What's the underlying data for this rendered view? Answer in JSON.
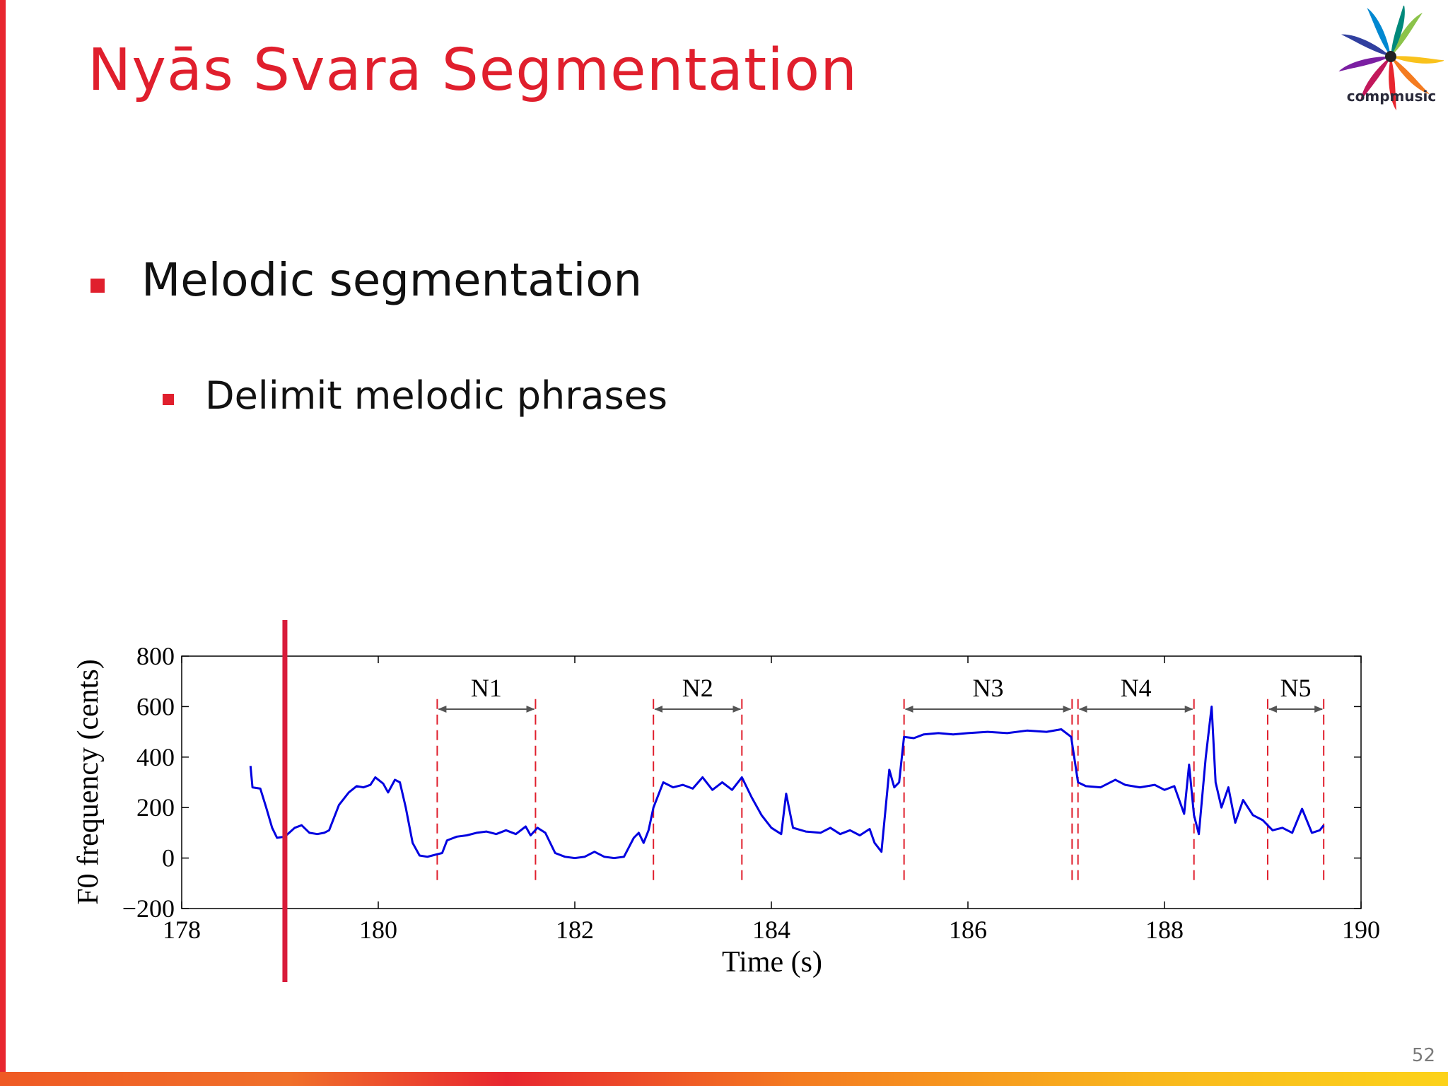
{
  "slide": {
    "title": "Nyās Svara Segmentation",
    "logo_text": "compmusic",
    "bullets": [
      {
        "text": "Melodic segmentation",
        "level": 1
      },
      {
        "text": "Delimit melodic phrases",
        "level": 2
      }
    ],
    "page_number": "52",
    "colors": {
      "accent": "#e01f2d",
      "trace": "#0000e0",
      "segment_line": "#e01f2d",
      "arrow": "#555555"
    }
  },
  "chart_data": {
    "type": "line",
    "xlabel": "Time (s)",
    "ylabel": "F0 frequency (cents)",
    "xlim": [
      178,
      190
    ],
    "ylim": [
      -200,
      800
    ],
    "xticks": [
      178,
      180,
      182,
      184,
      186,
      188,
      190
    ],
    "xtick_labels": [
      "178",
      "180",
      "182",
      "184",
      "186",
      "188",
      "190"
    ],
    "yticks": [
      -200,
      0,
      200,
      400,
      600,
      800
    ],
    "ytick_labels": [
      "−200",
      "0",
      "200",
      "400",
      "600",
      "800"
    ],
    "series": [
      {
        "name": "F0 contour",
        "points": [
          [
            178.7,
            365
          ],
          [
            178.72,
            280
          ],
          [
            178.8,
            275
          ],
          [
            178.86,
            200
          ],
          [
            178.92,
            120
          ],
          [
            178.97,
            80
          ],
          [
            179.05,
            85
          ],
          [
            179.15,
            120
          ],
          [
            179.22,
            130
          ],
          [
            179.3,
            100
          ],
          [
            179.38,
            95
          ],
          [
            179.45,
            100
          ],
          [
            179.5,
            110
          ],
          [
            179.6,
            210
          ],
          [
            179.7,
            260
          ],
          [
            179.78,
            285
          ],
          [
            179.85,
            280
          ],
          [
            179.92,
            290
          ],
          [
            179.97,
            320
          ],
          [
            180.05,
            295
          ],
          [
            180.1,
            260
          ],
          [
            180.17,
            310
          ],
          [
            180.22,
            300
          ],
          [
            180.28,
            200
          ],
          [
            180.35,
            60
          ],
          [
            180.42,
            10
          ],
          [
            180.5,
            5
          ],
          [
            180.55,
            10
          ],
          [
            180.6,
            15
          ],
          [
            180.65,
            20
          ],
          [
            180.7,
            70
          ],
          [
            180.8,
            85
          ],
          [
            180.9,
            90
          ],
          [
            181.0,
            100
          ],
          [
            181.1,
            105
          ],
          [
            181.2,
            95
          ],
          [
            181.3,
            110
          ],
          [
            181.4,
            95
          ],
          [
            181.5,
            125
          ],
          [
            181.55,
            90
          ],
          [
            181.62,
            120
          ],
          [
            181.7,
            100
          ],
          [
            181.8,
            20
          ],
          [
            181.9,
            5
          ],
          [
            182.0,
            0
          ],
          [
            182.1,
            5
          ],
          [
            182.2,
            25
          ],
          [
            182.3,
            5
          ],
          [
            182.4,
            0
          ],
          [
            182.5,
            5
          ],
          [
            182.6,
            80
          ],
          [
            182.65,
            100
          ],
          [
            182.7,
            60
          ],
          [
            182.75,
            110
          ],
          [
            182.8,
            200
          ],
          [
            182.9,
            300
          ],
          [
            183.0,
            280
          ],
          [
            183.1,
            290
          ],
          [
            183.2,
            275
          ],
          [
            183.3,
            320
          ],
          [
            183.4,
            270
          ],
          [
            183.5,
            300
          ],
          [
            183.6,
            270
          ],
          [
            183.7,
            320
          ],
          [
            183.8,
            240
          ],
          [
            183.9,
            170
          ],
          [
            184.0,
            120
          ],
          [
            184.1,
            95
          ],
          [
            184.15,
            255
          ],
          [
            184.22,
            120
          ],
          [
            184.35,
            105
          ],
          [
            184.5,
            100
          ],
          [
            184.6,
            120
          ],
          [
            184.7,
            95
          ],
          [
            184.8,
            110
          ],
          [
            184.9,
            90
          ],
          [
            185.0,
            115
          ],
          [
            185.05,
            60
          ],
          [
            185.12,
            25
          ],
          [
            185.2,
            350
          ],
          [
            185.25,
            280
          ],
          [
            185.3,
            300
          ],
          [
            185.35,
            480
          ],
          [
            185.45,
            475
          ],
          [
            185.55,
            490
          ],
          [
            185.7,
            495
          ],
          [
            185.85,
            490
          ],
          [
            186.0,
            495
          ],
          [
            186.2,
            500
          ],
          [
            186.4,
            495
          ],
          [
            186.6,
            505
          ],
          [
            186.8,
            500
          ],
          [
            186.95,
            510
          ],
          [
            187.05,
            480
          ],
          [
            187.12,
            300
          ],
          [
            187.2,
            285
          ],
          [
            187.35,
            280
          ],
          [
            187.5,
            310
          ],
          [
            187.6,
            290
          ],
          [
            187.75,
            280
          ],
          [
            187.9,
            290
          ],
          [
            188.0,
            270
          ],
          [
            188.1,
            285
          ],
          [
            188.2,
            175
          ],
          [
            188.25,
            370
          ],
          [
            188.3,
            170
          ],
          [
            188.35,
            95
          ],
          [
            188.42,
            400
          ],
          [
            188.48,
            600
          ],
          [
            188.52,
            300
          ],
          [
            188.58,
            200
          ],
          [
            188.65,
            280
          ],
          [
            188.72,
            140
          ],
          [
            188.8,
            230
          ],
          [
            188.9,
            170
          ],
          [
            189.0,
            150
          ],
          [
            189.1,
            110
          ],
          [
            189.2,
            120
          ],
          [
            189.3,
            100
          ],
          [
            189.4,
            195
          ],
          [
            189.5,
            100
          ],
          [
            189.58,
            110
          ],
          [
            189.62,
            130
          ]
        ]
      }
    ],
    "segment_boundaries": [
      180.6,
      181.6,
      182.8,
      183.7,
      185.35,
      187.06,
      187.12,
      188.3,
      189.05,
      189.62
    ],
    "segments": [
      {
        "label": "N1",
        "start": 180.6,
        "end": 181.6
      },
      {
        "label": "N2",
        "start": 182.8,
        "end": 183.7
      },
      {
        "label": "N3",
        "start": 185.35,
        "end": 187.06
      },
      {
        "label": "N4",
        "start": 187.12,
        "end": 188.3
      },
      {
        "label": "N5",
        "start": 189.05,
        "end": 189.62
      }
    ],
    "playhead_time": 179.05
  }
}
